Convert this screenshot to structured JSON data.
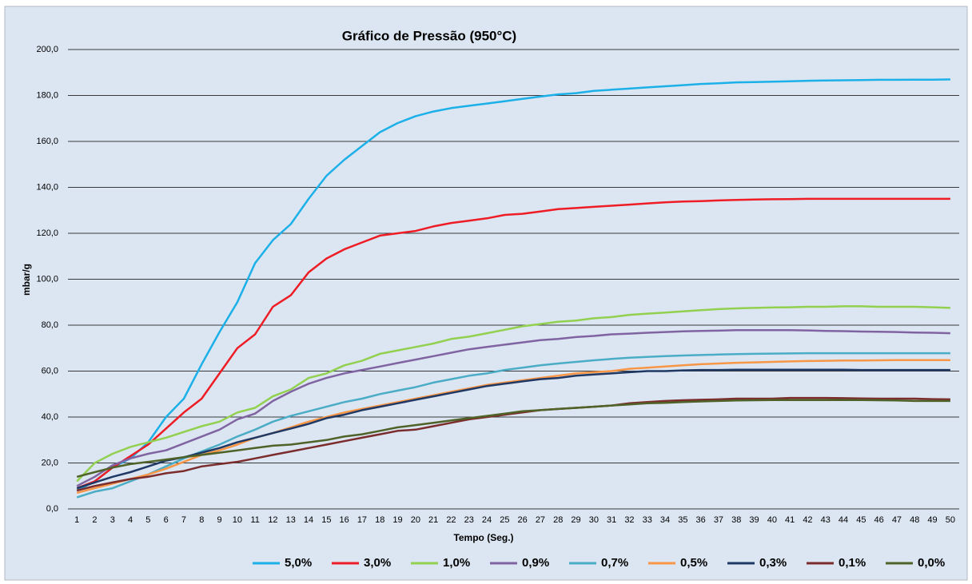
{
  "chart_data": {
    "type": "line",
    "title": "Gráfico de Pressão (950°C)",
    "xlabel": "Tempo (Seg.)",
    "ylabel": "mbar/g",
    "categories": [
      "1",
      "2",
      "3",
      "4",
      "5",
      "6",
      "7",
      "8",
      "9",
      "10",
      "11",
      "12",
      "13",
      "14",
      "15",
      "16",
      "17",
      "18",
      "19",
      "20",
      "21",
      "22",
      "23",
      "24",
      "25",
      "26",
      "27",
      "28",
      "29",
      "30",
      "31",
      "32",
      "33",
      "34",
      "35",
      "36",
      "37",
      "38",
      "39",
      "40",
      "41",
      "42",
      "43",
      "44",
      "45",
      "46",
      "47",
      "48",
      "49",
      "50"
    ],
    "ylim": [
      0,
      200
    ],
    "yticks": [
      {
        "value": 0,
        "label": "0,0"
      },
      {
        "value": 20,
        "label": "20,0"
      },
      {
        "value": 40,
        "label": "40,0"
      },
      {
        "value": 60,
        "label": "60,0"
      },
      {
        "value": 80,
        "label": "80,0"
      },
      {
        "value": 100,
        "label": "100,0"
      },
      {
        "value": 120,
        "label": "120,0"
      },
      {
        "value": 140,
        "label": "140,0"
      },
      {
        "value": 160,
        "label": "160,0"
      },
      {
        "value": 180,
        "label": "180,0"
      },
      {
        "value": 200,
        "label": "200,0"
      }
    ],
    "grid": true,
    "legend": "bottom",
    "series": [
      {
        "name": "5,0%",
        "color": "#1cb0e8",
        "values": [
          8,
          12,
          18,
          22,
          29,
          40,
          48,
          63,
          77,
          90,
          107,
          117,
          124,
          135,
          145,
          152,
          158,
          164,
          168,
          171,
          173,
          174.5,
          175.5,
          176.5,
          177.5,
          178.5,
          179.5,
          180.5,
          181,
          182,
          182.5,
          183,
          183.5,
          184,
          184.5,
          185,
          185.3,
          185.7,
          185.8,
          186,
          186.2,
          186.4,
          186.5,
          186.6,
          186.7,
          186.8,
          186.8,
          186.9,
          186.9,
          187
        ]
      },
      {
        "name": "3,0%",
        "color": "#ee1c24",
        "values": [
          9,
          12,
          18,
          23,
          28,
          35,
          42,
          48,
          59,
          70,
          76,
          88,
          93,
          103,
          109,
          113,
          116,
          119,
          120,
          121,
          123,
          124.5,
          125.5,
          126.5,
          128,
          128.5,
          129.5,
          130.5,
          131,
          131.5,
          132,
          132.5,
          133,
          133.5,
          133.8,
          134,
          134.3,
          134.5,
          134.7,
          134.8,
          134.9,
          135,
          135,
          135,
          135,
          135,
          135,
          135,
          135,
          135
        ]
      },
      {
        "name": "1,0%",
        "color": "#92d050",
        "values": [
          12,
          20,
          24,
          27,
          29,
          31,
          33.5,
          36,
          38,
          42,
          44,
          49,
          52,
          57,
          59,
          62.5,
          64.5,
          67.5,
          69,
          70.5,
          72,
          74,
          75,
          76.5,
          78,
          79.5,
          80.5,
          81.5,
          82,
          83,
          83.5,
          84.5,
          85,
          85.5,
          86,
          86.5,
          87,
          87.3,
          87.5,
          87.7,
          87.8,
          88,
          88,
          88.2,
          88.2,
          88,
          88,
          88,
          87.8,
          87.5
        ]
      },
      {
        "name": "0,9%",
        "color": "#8064a2",
        "values": [
          10,
          14,
          19,
          22,
          24,
          25.5,
          28.5,
          31.5,
          34.5,
          39,
          41.5,
          47,
          51,
          54.5,
          57,
          59,
          60.5,
          62,
          63.5,
          65,
          66.5,
          68,
          69.5,
          70.5,
          71.5,
          72.5,
          73.5,
          74,
          74.8,
          75.3,
          76,
          76.3,
          76.7,
          77,
          77.3,
          77.5,
          77.6,
          77.8,
          77.8,
          77.8,
          77.8,
          77.7,
          77.5,
          77.4,
          77.2,
          77.1,
          77,
          76.8,
          76.7,
          76.5
        ]
      },
      {
        "name": "0,7%",
        "color": "#4bacc6",
        "values": [
          5,
          7.5,
          9,
          12,
          15,
          18.5,
          22,
          25,
          28,
          31.5,
          34.5,
          38,
          40.5,
          42.5,
          44.5,
          46.5,
          48,
          50,
          51.5,
          53,
          55,
          56.5,
          58,
          59,
          60.5,
          61.5,
          62.5,
          63.3,
          64,
          64.7,
          65.3,
          65.8,
          66.2,
          66.5,
          66.8,
          67,
          67.2,
          67.4,
          67.5,
          67.6,
          67.7,
          67.8,
          67.8,
          67.8,
          67.8,
          67.8,
          67.8,
          67.8,
          67.8,
          67.8
        ]
      },
      {
        "name": "0,5%",
        "color": "#f79646",
        "values": [
          7,
          9,
          11,
          13,
          15,
          17.5,
          20.5,
          23.5,
          25.5,
          28,
          31,
          33,
          35.5,
          38,
          40,
          42,
          43.5,
          45,
          46.5,
          48,
          49.5,
          51,
          52.5,
          54,
          55,
          56,
          57,
          58,
          59,
          59.5,
          60,
          61,
          61.5,
          62,
          62.5,
          63,
          63.3,
          63.6,
          63.8,
          64,
          64.2,
          64.4,
          64.5,
          64.6,
          64.6,
          64.7,
          64.8,
          64.8,
          64.8,
          64.8
        ]
      },
      {
        "name": "0,3%",
        "color": "#1f3864",
        "values": [
          9,
          11.5,
          14,
          16,
          18.5,
          21,
          22.5,
          24.5,
          26.5,
          29,
          31,
          33,
          35,
          37,
          39.5,
          41,
          43,
          44.5,
          46,
          47.5,
          49,
          50.5,
          52,
          53.5,
          54.5,
          55.5,
          56.5,
          57,
          58,
          58.5,
          59,
          59.5,
          60,
          60,
          60.3,
          60.5,
          60.5,
          60.6,
          60.6,
          60.6,
          60.6,
          60.6,
          60.6,
          60.6,
          60.5,
          60.5,
          60.5,
          60.5,
          60.5,
          60.5
        ]
      },
      {
        "name": "0,1%",
        "color": "#7b2c2c",
        "values": [
          8,
          10,
          11.5,
          13,
          14,
          15.5,
          16.5,
          18.5,
          19.5,
          20.5,
          22,
          23.5,
          25,
          26.5,
          28,
          29.5,
          31,
          32.5,
          34,
          34.5,
          36,
          37.5,
          39,
          40,
          41,
          42,
          43,
          43.5,
          44,
          44.5,
          45,
          46,
          46.5,
          47,
          47.3,
          47.5,
          47.7,
          48,
          48,
          48,
          48.3,
          48.3,
          48.3,
          48.2,
          48.1,
          48,
          48,
          48,
          47.8,
          47.7
        ]
      },
      {
        "name": "0,0%",
        "color": "#4f6228",
        "values": [
          14,
          16,
          18,
          19.5,
          20.5,
          21.5,
          22.5,
          23.5,
          24.5,
          25.5,
          26.5,
          27.5,
          28,
          29,
          30,
          31.5,
          32.5,
          34,
          35.5,
          36.5,
          37.5,
          38.5,
          39.5,
          40.5,
          41.5,
          42.5,
          43,
          43.5,
          44,
          44.5,
          45,
          45.5,
          46,
          46.2,
          46.5,
          46.8,
          47,
          47.2,
          47.3,
          47.4,
          47.4,
          47.4,
          47.4,
          47.4,
          47.4,
          47.3,
          47.2,
          47,
          47,
          47
        ]
      }
    ]
  }
}
